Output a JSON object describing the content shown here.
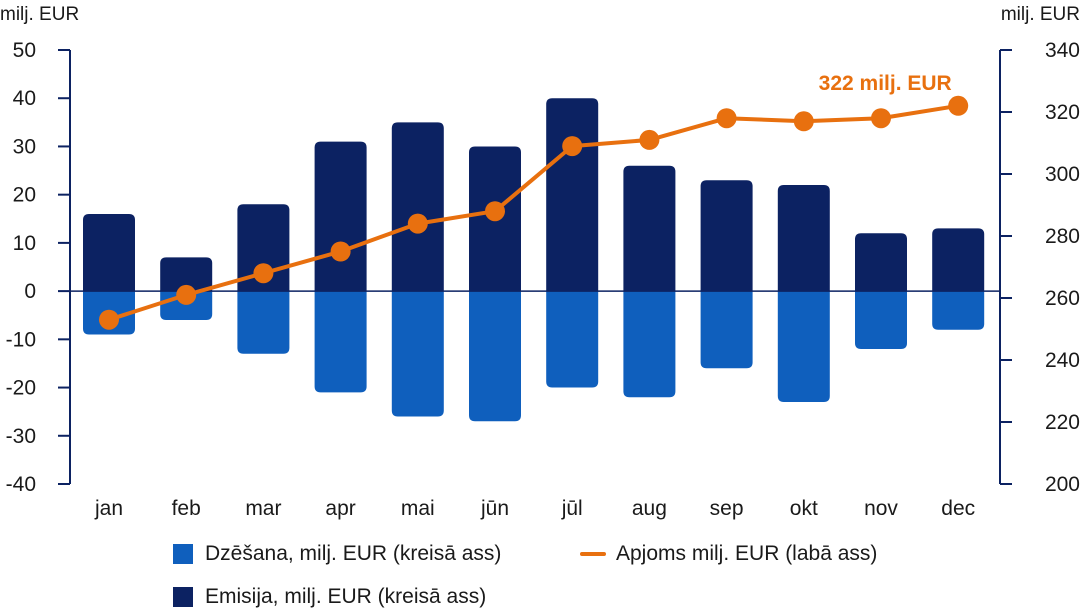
{
  "chart_data": {
    "type": "bar+line",
    "categories": [
      "jan",
      "feb",
      "mar",
      "apr",
      "mai",
      "jūn",
      "jūl",
      "aug",
      "sep",
      "okt",
      "nov",
      "dec"
    ],
    "series": [
      {
        "name": "Dzēšana, milj. EUR (kreisā ass)",
        "type": "bar",
        "axis": "left",
        "color": "#0f5fbd",
        "values": [
          -9,
          -6,
          -13,
          -21,
          -26,
          -27,
          -20,
          -22,
          -16,
          -23,
          -12,
          -8
        ]
      },
      {
        "name": "Emisija, milj. EUR (kreisā ass)",
        "type": "bar",
        "axis": "left",
        "color": "#0c2262",
        "values": [
          16,
          7,
          18,
          31,
          35,
          30,
          40,
          26,
          23,
          22,
          12,
          13
        ]
      },
      {
        "name": "Apjoms milj. EUR (labā ass)",
        "type": "line",
        "axis": "right",
        "color": "#e8700f",
        "values": [
          253,
          261,
          268,
          275,
          284,
          288,
          309,
          311,
          318,
          317,
          318,
          322
        ]
      }
    ],
    "left_axis": {
      "unit": "milj. EUR",
      "ylim": [
        -40,
        50
      ],
      "ticks": [
        "50",
        "40",
        "30",
        "20",
        "10",
        "0",
        "-10",
        "-20",
        "-30",
        "-40"
      ]
    },
    "right_axis": {
      "unit": "milj. EUR",
      "ylim": [
        200,
        340
      ],
      "ticks": [
        "340",
        "320",
        "300",
        "280",
        "260",
        "240",
        "220",
        "200"
      ]
    },
    "annotation": {
      "text": "322 milj. EUR",
      "category": "dec"
    },
    "grid": false,
    "legend_position": "bottom"
  },
  "legend": {
    "dzesana": "Dzēšana, milj. EUR (kreisā ass)",
    "apjoms": "Apjoms milj. EUR (labā ass)",
    "emisija": "Emisija, milj. EUR (kreisā ass)"
  },
  "colors": {
    "emisija": "#0c2262",
    "dzesana": "#0f5fbd",
    "apjoms": "#e8700f",
    "axis": "#0c2262"
  }
}
